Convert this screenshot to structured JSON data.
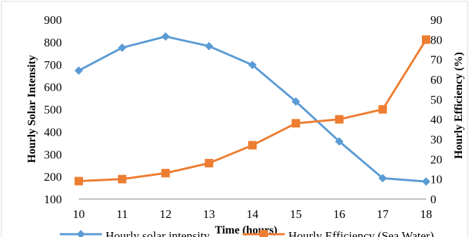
{
  "chart_data": {
    "type": "line",
    "x": [
      10,
      11,
      12,
      13,
      14,
      15,
      16,
      17,
      18
    ],
    "series": [
      {
        "name": "Hourly solar intensity",
        "axis": "left",
        "color": "#5B9BD5",
        "marker": "diamond",
        "values": [
          673,
          775,
          825,
          782,
          698,
          535,
          357,
          193,
          178
        ]
      },
      {
        "name": "Hourly Efficiency (Sea Water)",
        "axis": "right",
        "color": "#ED7D31",
        "marker": "square",
        "values": [
          9,
          10,
          13,
          18,
          27,
          38,
          40,
          45,
          80
        ]
      }
    ],
    "xlabel": "Time (hours)",
    "ylabel": "Hourly Solar Intensity",
    "y2label": "Hourly Efficiency (%)",
    "xlim": [
      10,
      18
    ],
    "ylim": [
      100,
      900
    ],
    "y2lim": [
      0,
      90
    ],
    "x_ticks": [
      10,
      11,
      12,
      13,
      14,
      15,
      16,
      17,
      18
    ],
    "y_ticks": [
      100,
      200,
      300,
      400,
      500,
      600,
      700,
      800,
      900
    ],
    "y2_ticks": [
      0,
      10,
      20,
      30,
      40,
      50,
      60,
      70,
      80,
      90
    ],
    "grid": false,
    "legend": "bottom"
  }
}
